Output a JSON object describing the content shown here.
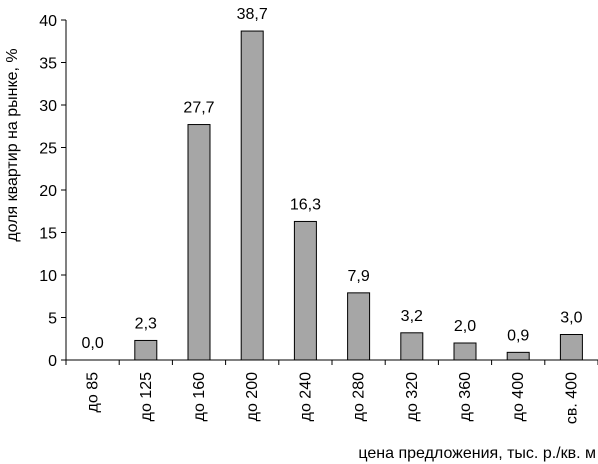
{
  "chart_data": {
    "type": "bar",
    "categories": [
      "до 85",
      "до 125",
      "до 160",
      "до 200",
      "до 240",
      "до 280",
      "до 320",
      "до 360",
      "до 400",
      "св. 400"
    ],
    "values": [
      0.0,
      2.3,
      27.7,
      38.7,
      16.3,
      7.9,
      3.2,
      2.0,
      0.9,
      3.0
    ],
    "data_labels": [
      "0,0",
      "2,3",
      "27,7",
      "38,7",
      "16,3",
      "7,9",
      "3,2",
      "2,0",
      "0,9",
      "3,0"
    ],
    "xlabel": "цена предложения, тыс. р./кв. м",
    "ylabel": "доля квартир на рынке, %",
    "ylim": [
      0,
      40
    ],
    "yticks": [
      0,
      5,
      10,
      15,
      20,
      25,
      30,
      35,
      40
    ],
    "ytick_labels": [
      "0",
      "5",
      "10",
      "15",
      "20",
      "25",
      "30",
      "35",
      "40"
    ],
    "grid": false,
    "legend": "none",
    "colors": {
      "bar_fill": "#a6a6a6",
      "bar_stroke": "#000000",
      "axis": "#000000"
    }
  }
}
